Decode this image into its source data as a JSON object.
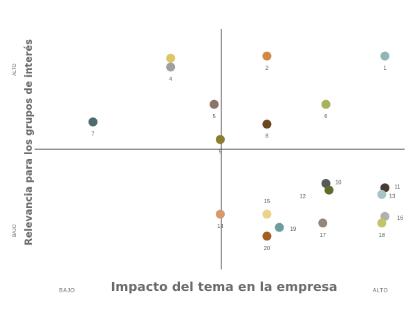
{
  "chart_data": {
    "type": "scatter",
    "title": "",
    "xlabel": "Impacto del tema en la empresa",
    "ylabel": "Relevancia para los grupos de interés",
    "xlim": [
      0,
      100
    ],
    "ylim": [
      0,
      100
    ],
    "grid": false,
    "x_tick_labels": {
      "low": "BAJO",
      "high": "ALTO"
    },
    "y_tick_labels": {
      "low": "BAJO",
      "high": "ALTO"
    },
    "points": [
      {
        "label": "1",
        "x": 99,
        "y": 94,
        "color": "#8fb7b6"
      },
      {
        "label": "2",
        "x": 61,
        "y": 94,
        "color": "#d08a46"
      },
      {
        "label": "4",
        "x": 30,
        "y": 89,
        "color": "#a0a09c"
      },
      {
        "label": "",
        "x": 30,
        "y": 93,
        "color": "#dcc56a"
      },
      {
        "label": "5",
        "x": 44,
        "y": 72,
        "color": "#8a7566"
      },
      {
        "label": "6",
        "x": 80,
        "y": 72,
        "color": "#a9b25a"
      },
      {
        "label": "7",
        "x": 5,
        "y": 64,
        "color": "#4c6b6c"
      },
      {
        "label": "8",
        "x": 61,
        "y": 63,
        "color": "#6e4521"
      },
      {
        "label": "9",
        "x": 46,
        "y": 56,
        "color": "#8d7c2f"
      },
      {
        "label": "10",
        "x": 80,
        "y": 36,
        "color": "#55595a"
      },
      {
        "label": "11",
        "x": 99,
        "y": 34,
        "color": "#4a3b32"
      },
      {
        "label": "12",
        "x": 81,
        "y": 33,
        "color": "#5e6b2d"
      },
      {
        "label": "13",
        "x": 98,
        "y": 31,
        "color": "#a7c3c2"
      },
      {
        "label": "14",
        "x": 46,
        "y": 22,
        "color": "#d69a6c"
      },
      {
        "label": "15",
        "x": 61,
        "y": 22,
        "color": "#ead48c"
      },
      {
        "label": "16",
        "x": 99,
        "y": 21,
        "color": "#b0b0ae"
      },
      {
        "label": "17",
        "x": 79,
        "y": 18,
        "color": "#928779"
      },
      {
        "label": "18",
        "x": 98,
        "y": 18,
        "color": "#c2c466"
      },
      {
        "label": "19",
        "x": 65,
        "y": 16,
        "color": "#6e9c9e"
      },
      {
        "label": "20",
        "x": 61,
        "y": 12,
        "color": "#a55e22"
      }
    ]
  }
}
